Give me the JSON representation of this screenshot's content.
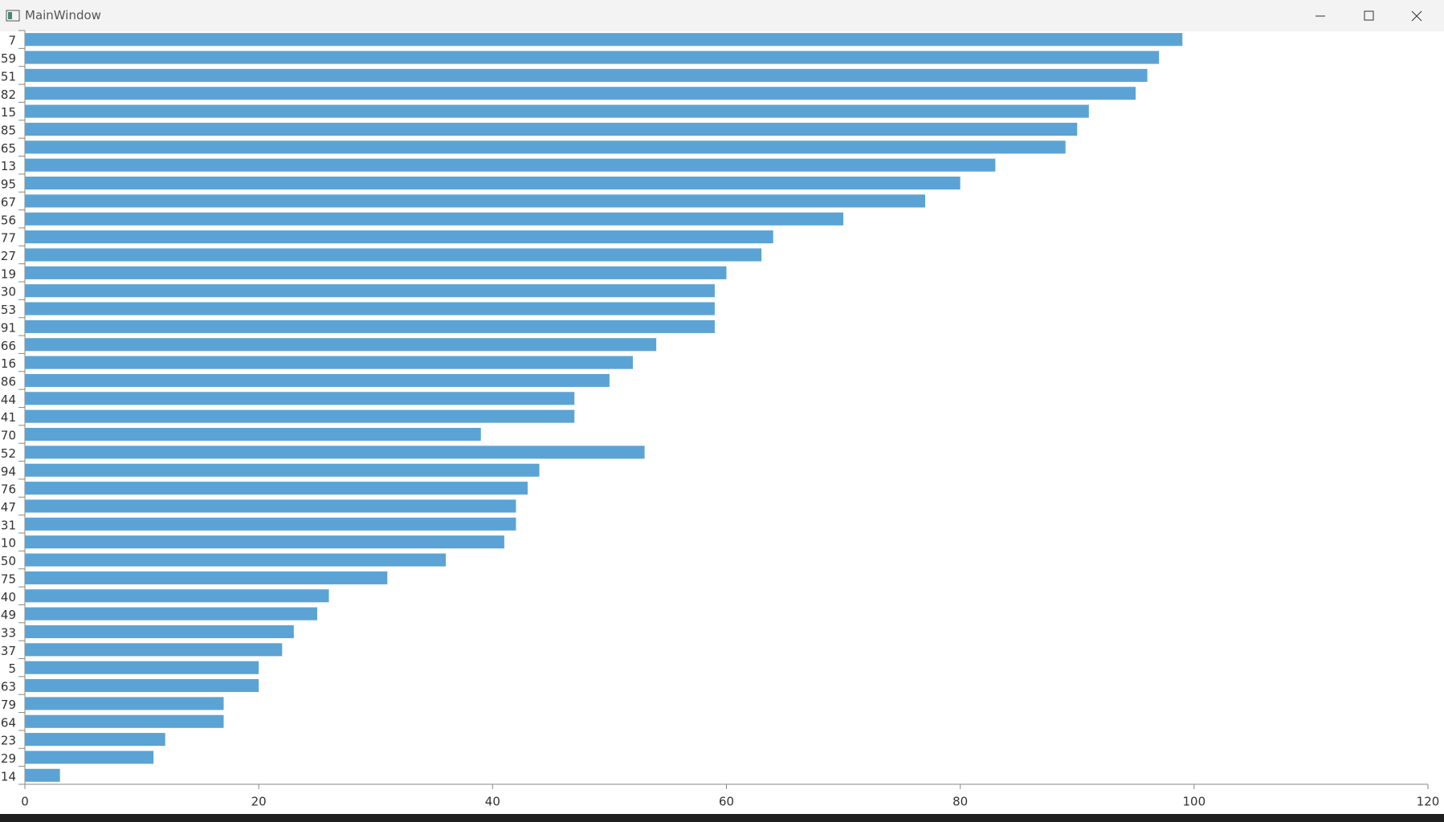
{
  "window": {
    "title": "MainWindow"
  },
  "chart_data": {
    "type": "barh",
    "categories": [
      "7",
      "59",
      "51",
      "82",
      "15",
      "85",
      "65",
      "13",
      "95",
      "67",
      "56",
      "77",
      "27",
      "19",
      "30",
      "53",
      "91",
      "66",
      "16",
      "86",
      "44",
      "41",
      "70",
      "52",
      "94",
      "76",
      "47",
      "31",
      "10",
      "50",
      "75",
      "40",
      "49",
      "33",
      "37",
      "5",
      "63",
      "79",
      "64",
      "23",
      "29",
      "14"
    ],
    "values": [
      99,
      97,
      96,
      95,
      91,
      90,
      89,
      83,
      80,
      77,
      70,
      64,
      63,
      60,
      59,
      59,
      59,
      54,
      52,
      50,
      47,
      47,
      39,
      53,
      44,
      43,
      42,
      42,
      41,
      36,
      31,
      26,
      25,
      23,
      22,
      20,
      20,
      17,
      17,
      12,
      11,
      3
    ],
    "color": "#5ba3d4",
    "xlim": [
      0,
      120
    ],
    "xticks": [
      0,
      20,
      40,
      60,
      80,
      100,
      120
    ]
  }
}
